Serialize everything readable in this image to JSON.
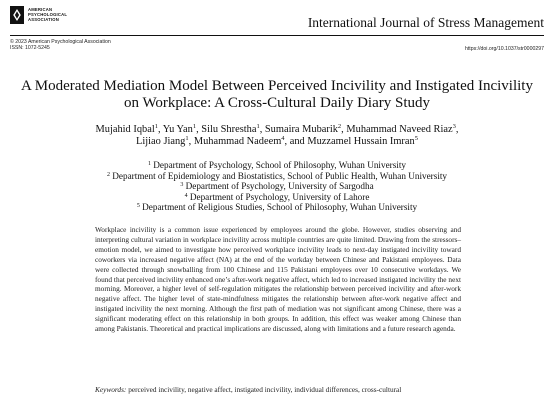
{
  "header": {
    "publisher_logo_lines": [
      "AMERICAN",
      "PSYCHOLOGICAL",
      "ASSOCIATION"
    ],
    "journal_title": "International Journal of Stress Management",
    "copyright": "© 2023 American Psychological Association",
    "issn": "ISSN: 1072-5245",
    "doi": "https://doi.org/10.1037/str0000297"
  },
  "paper": {
    "title": "A Moderated Mediation Model Between Perceived Incivility and Instigated Incivility on Workplace: A Cross-Cultural Daily Diary Study",
    "authors": [
      {
        "name": "Mujahid Iqbal",
        "sup": "1"
      },
      {
        "name": "Yu Yan",
        "sup": "1"
      },
      {
        "name": "Silu Shrestha",
        "sup": "1"
      },
      {
        "name": "Sumaira Mubarik",
        "sup": "2"
      },
      {
        "name": "Muhammad Naveed Riaz",
        "sup": "3"
      },
      {
        "name": "Lijiao Jiang",
        "sup": "1"
      },
      {
        "name": "Muhammad Nadeem",
        "sup": "4"
      },
      {
        "name": "Muzzamel Hussain Imran",
        "sup": "5"
      }
    ],
    "author_separators": {
      "comma": ",",
      "and": ", and"
    },
    "affiliations": [
      {
        "sup": "1",
        "text": "Department of Psychology, School of Philosophy, Wuhan University"
      },
      {
        "sup": "2",
        "text": "Department of Epidemiology and Biostatistics, School of Public Health, Wuhan University"
      },
      {
        "sup": "3",
        "text": "Department of Psychology, University of Sargodha"
      },
      {
        "sup": "4",
        "text": "Department of Psychology, University of Lahore"
      },
      {
        "sup": "5",
        "text": "Department of Religious Studies, School of Philosophy, Wuhan University"
      }
    ],
    "abstract": "Workplace incivility is a common issue experienced by employees around the globe. However, studies observing and interpreting cultural variation in workplace incivility across multiple countries are quite limited. Drawing from the stressors–emotion model, we aimed to investigate how perceived workplace incivility leads to next-day instigated incivility toward coworkers via increased negative affect (NA) at the end of the workday between Chinese and Pakistani employees. Data were collected through snowballing from 100 Chinese and 115 Pakistani employees over 10 consecutive workdays. We found that perceived incivility enhanced one’s after-work negative affect, which led to increased instigated incivility the next morning. Moreover, a higher level of self-regulation mitigates the relationship between perceived incivility and after-work negative affect. The higher level of state-mindfulness mitigates the relationship between after-work negative affect and instigated incivility the next morning. Although the first path of mediation was not significant among Chinese, there was a significant moderating effect on this relationship in both groups. In addition, this effect was weaker among Chinese than among Pakistanis. Theoretical and practical implications are discussed, along with limitations and a future research agenda.",
    "keywords_label": "Keywords:",
    "keywords_text": "perceived incivility, negative affect, instigated incivility, individual differences, cross-cultural"
  }
}
